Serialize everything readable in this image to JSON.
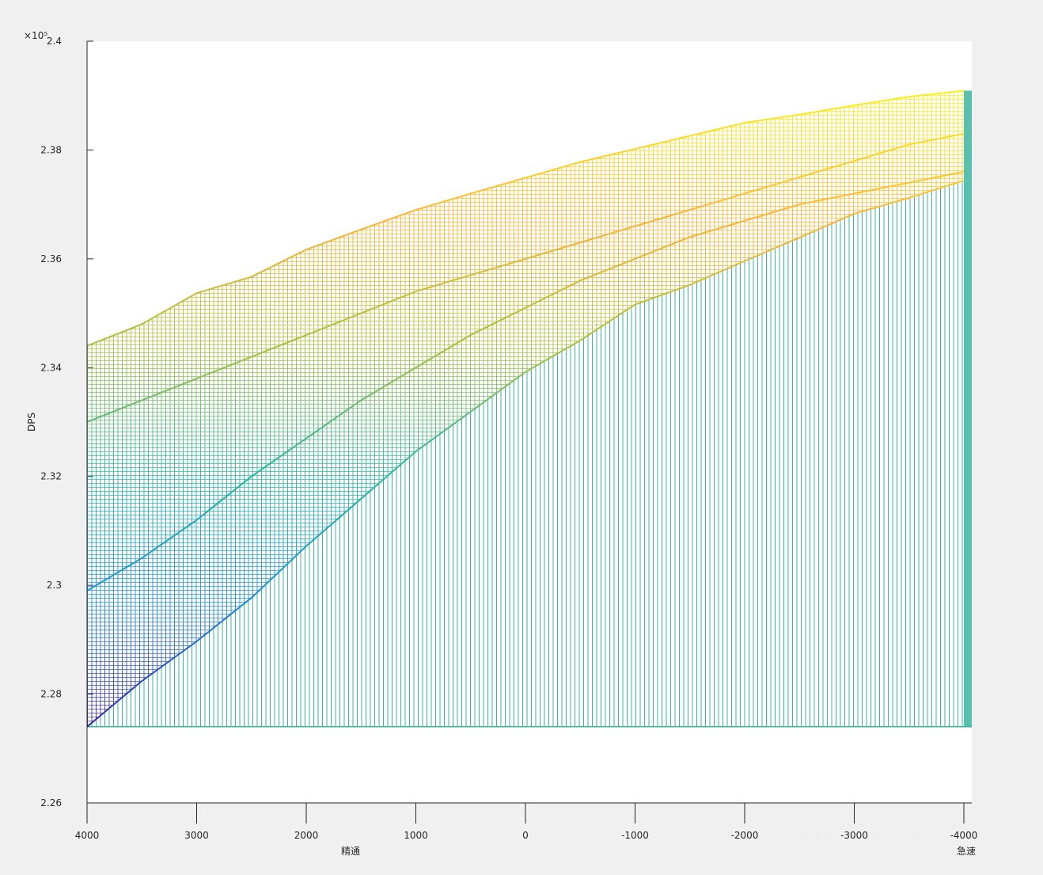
{
  "chart_data": {
    "type": "mesh",
    "y_label": "DPS",
    "y_multiplier": "×10⁵",
    "x_label": "精通",
    "x2_label": "急速",
    "watermark": "BBS.NGA.CN",
    "x": [
      4000,
      3500,
      3000,
      2500,
      2000,
      1500,
      1000,
      500,
      0,
      -500,
      -1000,
      -1500,
      -2000,
      -2500,
      -3000,
      -3500,
      -4000
    ],
    "xlim": [
      4000,
      -4000
    ],
    "xticks": [
      4000,
      3000,
      2000,
      1000,
      0,
      -1000,
      -2000,
      -3000,
      -4000
    ],
    "ylim": [
      2.26,
      2.4
    ],
    "yticks": [
      2.26,
      2.28,
      2.3,
      2.32,
      2.34,
      2.36,
      2.38,
      2.4
    ],
    "colormap": [
      "#3e26a8",
      "#1e8fd8",
      "#2ab6a0",
      "#a8c040",
      "#fbb43a",
      "#f9f21a"
    ],
    "curtain_color": "#3cb4a0",
    "curtain_base": 2.274,
    "series": [
      {
        "values": [
          2.274,
          2.2824,
          2.2897,
          2.2977,
          2.3072,
          2.3159,
          2.3246,
          2.3319,
          2.3392,
          2.345,
          2.3516,
          2.3552,
          2.3596,
          2.3639,
          2.3683,
          2.3712,
          2.3744
        ]
      },
      {
        "values": [
          2.299,
          2.305,
          2.312,
          2.32,
          2.327,
          2.334,
          2.34,
          2.346,
          2.351,
          2.356,
          2.36,
          2.364,
          2.367,
          2.37,
          2.372,
          2.374,
          2.376
        ]
      },
      {
        "values": [
          2.33,
          2.334,
          2.338,
          2.342,
          2.346,
          2.35,
          2.354,
          2.357,
          2.36,
          2.363,
          2.366,
          2.369,
          2.372,
          2.375,
          2.378,
          2.381,
          2.383
        ]
      },
      {
        "values": [
          2.344,
          2.348,
          2.3537,
          2.3567,
          2.3617,
          2.3654,
          2.369,
          2.372,
          2.3749,
          2.3778,
          2.3802,
          2.3826,
          2.385,
          2.3865,
          2.3882,
          2.3898,
          2.3909
        ]
      }
    ]
  }
}
